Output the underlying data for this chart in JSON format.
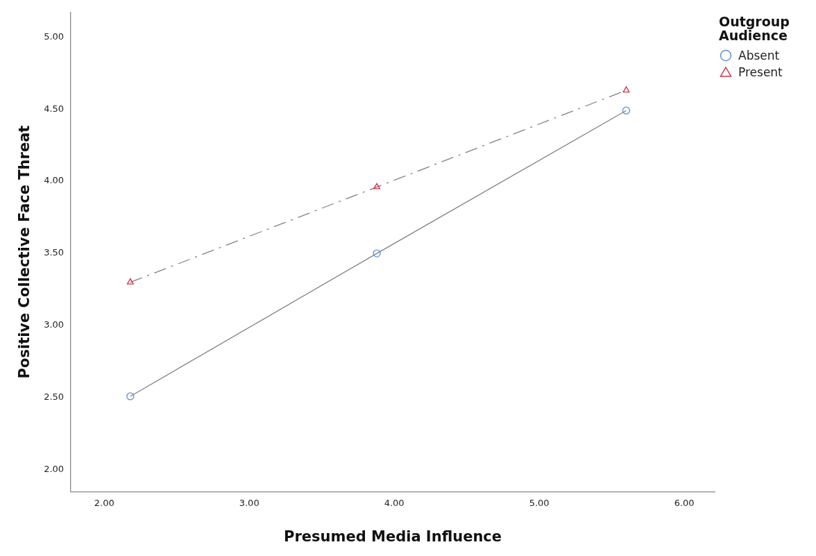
{
  "chart_data": {
    "type": "line",
    "xlabel": "Presumed Media Influence",
    "ylabel": "Positive Collective Face Threat",
    "legend_title": "Outgroup Audience",
    "x": [
      2.18,
      3.88,
      5.6
    ],
    "series": [
      {
        "name": "Absent",
        "color": "#5b8fe0",
        "marker": "circle",
        "line_style": "solid",
        "values": [
          2.51,
          3.5,
          4.49
        ]
      },
      {
        "name": "Present",
        "color": "#d0304a",
        "marker": "triangle",
        "line_style": "dashed",
        "values": [
          3.3,
          3.96,
          4.63
        ]
      }
    ],
    "xlim": [
      1.77,
      6.21
    ],
    "xticks": [
      {
        "value": 2,
        "label": "2.00"
      },
      {
        "value": 3,
        "label": "3.00"
      },
      {
        "value": 4,
        "label": "4.00"
      },
      {
        "value": 5,
        "label": "5.00"
      },
      {
        "value": 6,
        "label": "6.00"
      }
    ],
    "ylim": [
      1.85,
      5.17
    ],
    "yticks": [
      {
        "value": 2,
        "label": "2.00"
      },
      {
        "value": 2.5,
        "label": "2.50"
      },
      {
        "value": 3,
        "label": "3.00"
      },
      {
        "value": 3.5,
        "label": "3.50"
      },
      {
        "value": 4,
        "label": "4.00"
      },
      {
        "value": 4.5,
        "label": "4.50"
      },
      {
        "value": 5,
        "label": "5.00"
      }
    ],
    "grid": false,
    "legend": "top right"
  }
}
